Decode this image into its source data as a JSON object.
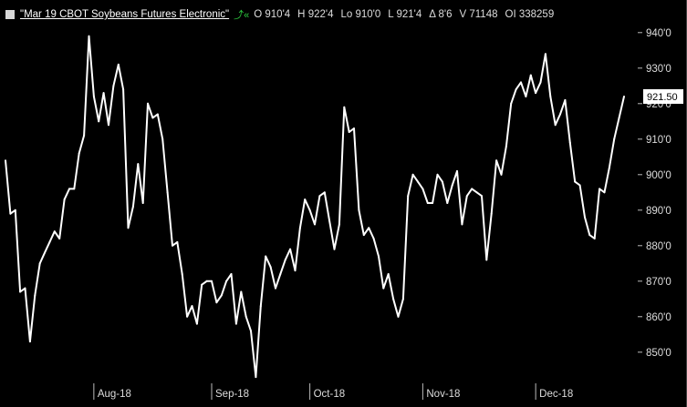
{
  "header": {
    "series_title": "\"Mar 19 CBOT Soybeans Futures Electronic\"",
    "icons": [
      "chart-up-icon",
      "rewind-icon"
    ],
    "stats": [
      {
        "label": "O",
        "value": "910'4"
      },
      {
        "label": "H",
        "value": "922'4"
      },
      {
        "label": "Lo",
        "value": "910'0"
      },
      {
        "label": "L",
        "value": "921'4"
      },
      {
        "label": "Δ",
        "value": "8'6"
      },
      {
        "label": "V",
        "value": "71148"
      },
      {
        "label": "OI",
        "value": "338259"
      }
    ]
  },
  "colors": {
    "background": "#000000",
    "line": "#ffffff",
    "text": "#dddddd",
    "last_badge": "#ffffff",
    "icon": "#2ecc40"
  },
  "chart_data": {
    "type": "line",
    "ylim": [
      842,
      942
    ],
    "y_ticks": [
      {
        "value": 850,
        "label": "850'0"
      },
      {
        "value": 860,
        "label": "860'0"
      },
      {
        "value": 870,
        "label": "870'0"
      },
      {
        "value": 880,
        "label": "880'0"
      },
      {
        "value": 890,
        "label": "890'0"
      },
      {
        "value": 900,
        "label": "900'0"
      },
      {
        "value": 910,
        "label": "910'0"
      },
      {
        "value": 920,
        "label": "920'0"
      },
      {
        "value": 930,
        "label": "930'0"
      },
      {
        "value": 940,
        "label": "940'0"
      }
    ],
    "x_ticks": [
      {
        "index": 18,
        "label": "Aug-18"
      },
      {
        "index": 42,
        "label": "Sep-18"
      },
      {
        "index": 62,
        "label": "Oct-18"
      },
      {
        "index": 85,
        "label": "Nov-18"
      },
      {
        "index": 108,
        "label": "Dec-18"
      }
    ],
    "last_value_label": "921.50",
    "series": [
      {
        "values": [
          904,
          889,
          890,
          867,
          868,
          853,
          866,
          875,
          878,
          881,
          884,
          882,
          893,
          896,
          896,
          906,
          911,
          939,
          922,
          915,
          923,
          914,
          925,
          931,
          924,
          885,
          891,
          903,
          892,
          920,
          916,
          917,
          910,
          895,
          880,
          881,
          872,
          860,
          863,
          858,
          869,
          870,
          870,
          864,
          866,
          870,
          872,
          858,
          867,
          860,
          856,
          843,
          863,
          877,
          874,
          868,
          872,
          876,
          879,
          873,
          885,
          893,
          890,
          886,
          894,
          895,
          887,
          879,
          886,
          919,
          912,
          913,
          890,
          883,
          885,
          882,
          877,
          868,
          872,
          865,
          860,
          865,
          894,
          900,
          898,
          896,
          892,
          892,
          900,
          898,
          892,
          897,
          901,
          886,
          894,
          896,
          895,
          894,
          876,
          889,
          904,
          900,
          908,
          920,
          924,
          926,
          922,
          928,
          923,
          926,
          934,
          922,
          914,
          917,
          921,
          909,
          898,
          897,
          888,
          883,
          882,
          896,
          895,
          902,
          910,
          916,
          922
        ]
      }
    ]
  }
}
